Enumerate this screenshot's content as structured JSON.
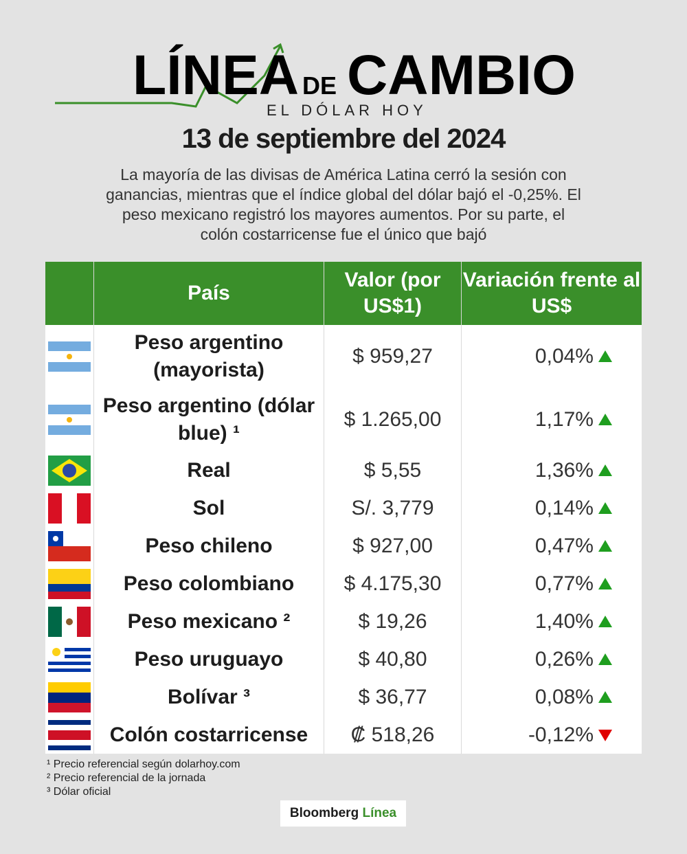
{
  "header": {
    "brand_part1": "LÍNEA",
    "brand_part2": "DE",
    "brand_part3": "CAMBIO",
    "subtitle": "EL DÓLAR HOY",
    "date": "13 de septiembre del 2024",
    "summary": "La mayoría de las divisas de América Latina cerró la sesión con ganancias, mientras que el índice global del dólar bajó el -0,25%. El peso mexicano registró los mayores aumentos. Por su parte, el colón costarricense fue el único que bajó"
  },
  "table": {
    "headers": [
      "País",
      "Valor (por US$1)",
      "Variación frente al US$"
    ],
    "rows": [
      [
        "Peso argentino (mayorista)",
        "$ 959,27",
        "0,04%"
      ],
      [
        "Peso argentino (dólar blue) ¹",
        "$ 1.265,00",
        "1,17%"
      ],
      [
        "Real",
        "$ 5,55",
        "1,36%"
      ],
      [
        "Sol",
        "S/. 3,779",
        "0,14%"
      ],
      [
        "Peso chileno",
        "$ 927,00",
        "0,47%"
      ],
      [
        "Peso colombiano",
        "$ 4.175,30",
        "0,77%"
      ],
      [
        "Peso mexicano ²",
        "$ 19,26",
        "1,40%"
      ],
      [
        "Peso uruguayo",
        "$ 40,80",
        "0,26%"
      ],
      [
        "Bolívar ³",
        "$ 36,77",
        "0,08%"
      ],
      [
        "Colón costarricense",
        "₡ 518,26",
        "-0,12%"
      ]
    ]
  },
  "footnotes": [
    "¹ Precio referencial según dolarhoy.com",
    "² Precio referencial de la jornada",
    "³ Dólar oficial"
  ],
  "footer": {
    "brand": "Bloomberg",
    "brand_accent": "Línea"
  }
}
